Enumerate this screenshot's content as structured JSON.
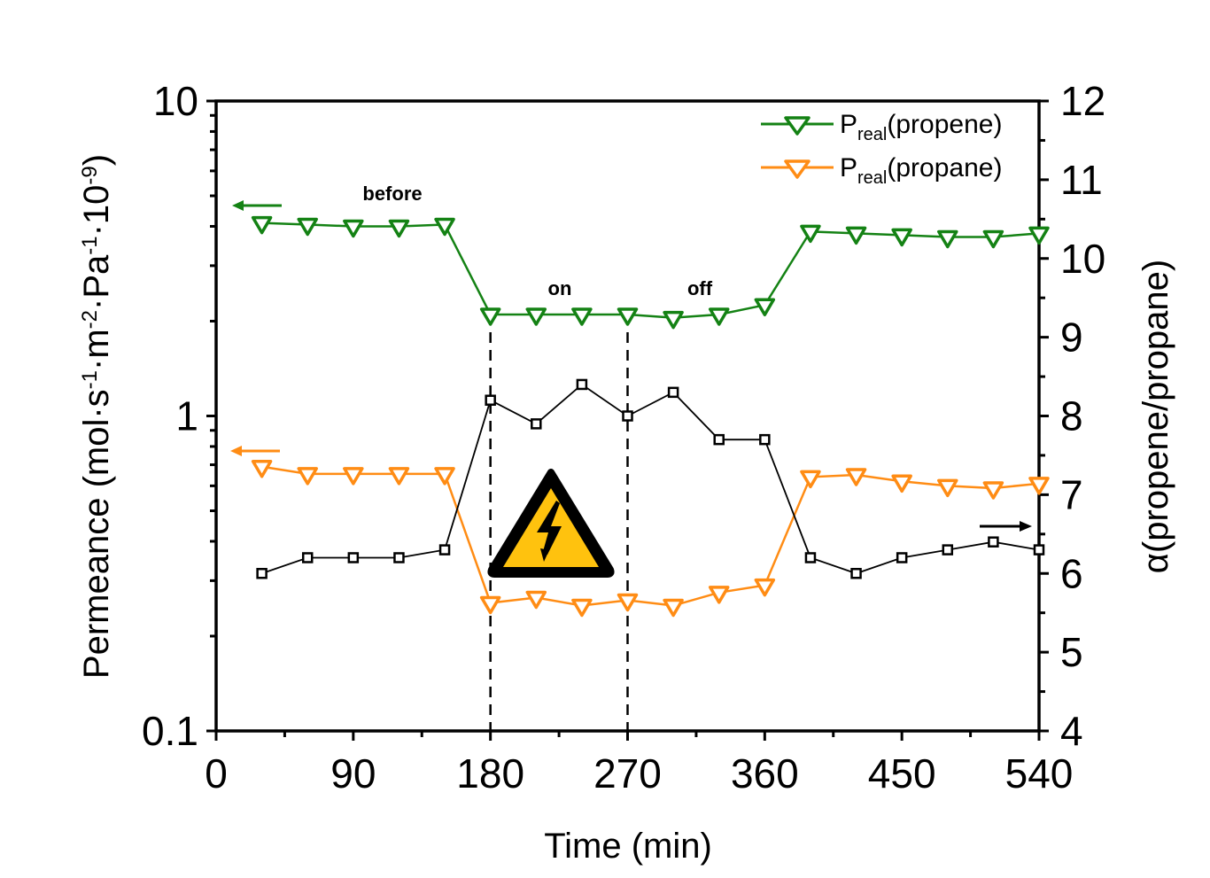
{
  "chart_data": {
    "type": "line",
    "xlabel": "Time (min)",
    "ylabel_left": {
      "prefix": "Permeance (mol·s",
      "parts": [
        {
          "text": "-1",
          "sup": true
        },
        {
          "text": "·m",
          "sup": false
        },
        {
          "text": "-2",
          "sup": true
        },
        {
          "text": "·Pa",
          "sup": false
        },
        {
          "text": "-1",
          "sup": true
        },
        {
          "text": "·10",
          "sup": false
        },
        {
          "text": "-9",
          "sup": true
        },
        {
          "text": ")",
          "sup": false
        }
      ]
    },
    "ylabel_right": "α(propene/propane)",
    "x_ticks": [
      0,
      90,
      180,
      270,
      360,
      450,
      540
    ],
    "x_tick_labels": [
      "0",
      "90",
      "180",
      "270",
      "360",
      "450",
      "540"
    ],
    "xlim": [
      0,
      540
    ],
    "y_left_scale": "log",
    "y_left_lim": [
      0.1,
      10
    ],
    "y_left_tick_labels": [
      "0.1",
      "1",
      "10"
    ],
    "y_right_lim": [
      4,
      12
    ],
    "y_right_ticks": [
      4,
      5,
      6,
      7,
      8,
      9,
      10,
      11,
      12
    ],
    "y_right_tick_labels": [
      "4",
      "5",
      "6",
      "7",
      "8",
      "9",
      "10",
      "11",
      "12"
    ],
    "grid": false,
    "legend_position": "top-right",
    "series": [
      {
        "key": "propene",
        "legend_main": "P",
        "legend_sub": "real",
        "legend_suffix": "(propene)",
        "axis": "left",
        "color": "#148214",
        "marker": "triangle-down",
        "x": [
          30,
          60,
          90,
          120,
          150,
          180,
          210,
          240,
          270,
          300,
          330,
          360,
          390,
          420,
          450,
          480,
          510,
          540
        ],
        "y": [
          4.1,
          4.05,
          4.0,
          4.0,
          4.05,
          2.1,
          2.1,
          2.1,
          2.1,
          2.05,
          2.1,
          2.25,
          3.85,
          3.8,
          3.75,
          3.7,
          3.7,
          3.8
        ]
      },
      {
        "key": "propane",
        "legend_main": "P",
        "legend_sub": "real",
        "legend_suffix": "(propane)",
        "axis": "left",
        "color": "#ff8c14",
        "marker": "triangle-down",
        "x": [
          30,
          60,
          90,
          120,
          150,
          180,
          210,
          240,
          270,
          300,
          330,
          360,
          390,
          420,
          450,
          480,
          510,
          540
        ],
        "y": [
          0.69,
          0.655,
          0.655,
          0.655,
          0.655,
          0.255,
          0.265,
          0.25,
          0.26,
          0.25,
          0.275,
          0.29,
          0.64,
          0.65,
          0.62,
          0.6,
          0.59,
          0.61
        ]
      },
      {
        "key": "alpha",
        "axis": "right",
        "color": "#000000",
        "marker": "square",
        "x": [
          30,
          60,
          90,
          120,
          150,
          180,
          210,
          240,
          270,
          300,
          330,
          360,
          390,
          420,
          450,
          480,
          510,
          540
        ],
        "y": [
          6.0,
          6.2,
          6.2,
          6.2,
          6.3,
          8.2,
          7.9,
          8.4,
          8.0,
          8.3,
          7.7,
          7.7,
          6.2,
          6.0,
          6.2,
          6.3,
          6.4,
          6.3
        ]
      }
    ],
    "vertical_markers": [
      180,
      270
    ],
    "annotations": [
      "before",
      "on",
      "off"
    ],
    "warning_icon": "high-voltage-warning-icon"
  }
}
